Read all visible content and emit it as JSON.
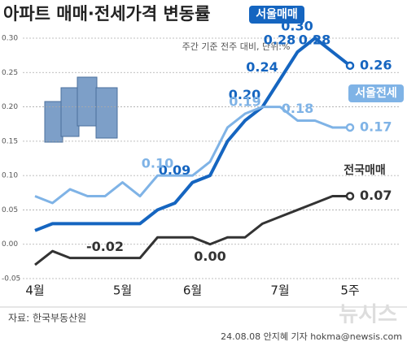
{
  "chart_data": {
    "type": "line",
    "title": "아파트 매매·전세가격 변동률",
    "subtitle": "주간 기준 전주 대비, 단위:%",
    "source": "자료: 한국부동산원",
    "credit": "24.08.08 안지혜 기자 hokma@newsis.com",
    "watermark": "뉴시스",
    "categories": [
      "4월",
      null,
      null,
      null,
      null,
      "5월",
      null,
      null,
      null,
      "6월",
      null,
      null,
      null,
      null,
      "7월",
      null,
      null,
      null,
      "5주"
    ],
    "series": [
      {
        "name": "서울매매",
        "color": "#1565c0",
        "values": [
          0.02,
          0.03,
          0.03,
          0.03,
          0.03,
          0.03,
          0.03,
          0.05,
          0.06,
          0.09,
          0.1,
          0.15,
          0.18,
          0.2,
          0.24,
          0.28,
          0.3,
          0.28,
          0.26
        ],
        "value_labels": [
          null,
          null,
          null,
          null,
          null,
          null,
          null,
          null,
          null,
          "0.09",
          null,
          null,
          null,
          "0.20",
          "0.24",
          "0.28",
          "0.30",
          "0.28",
          "0.26"
        ]
      },
      {
        "name": "서울전세",
        "color": "#7fb3e6",
        "values": [
          0.07,
          0.06,
          0.08,
          0.07,
          0.07,
          0.09,
          0.07,
          0.1,
          0.1,
          0.1,
          0.12,
          0.17,
          0.19,
          0.2,
          0.2,
          0.18,
          0.18,
          0.17,
          0.17
        ],
        "value_labels": [
          null,
          null,
          null,
          null,
          null,
          null,
          null,
          "0.10",
          null,
          null,
          null,
          null,
          "0.19",
          null,
          null,
          "0.18",
          null,
          null,
          "0.17"
        ]
      },
      {
        "name": "전국매매",
        "color": "#333333",
        "values": [
          -0.03,
          -0.01,
          -0.02,
          -0.02,
          -0.02,
          -0.02,
          -0.02,
          0.01,
          0.01,
          0.01,
          0.0,
          0.01,
          0.01,
          0.03,
          0.04,
          0.05,
          0.06,
          0.07,
          0.07
        ],
        "value_labels": [
          null,
          null,
          null,
          null,
          "-0.02",
          null,
          null,
          null,
          null,
          null,
          "0.00",
          null,
          null,
          null,
          null,
          null,
          null,
          null,
          "0.07"
        ]
      }
    ],
    "ylim": [
      -0.05,
      0.3
    ],
    "yticks": [
      {
        "value": -0.05,
        "label": "-0.05"
      },
      {
        "value": 0,
        "label": "0.00"
      },
      {
        "value": 0.05,
        "label": "0.05"
      },
      {
        "value": 0.1,
        "label": "0.10"
      },
      {
        "value": 0.15,
        "label": "0.15"
      },
      {
        "value": 0.2,
        "label": "0.20"
      },
      {
        "value": 0.25,
        "label": "0.25"
      },
      {
        "value": 0.3,
        "label": "0.30"
      }
    ],
    "grid": true
  }
}
